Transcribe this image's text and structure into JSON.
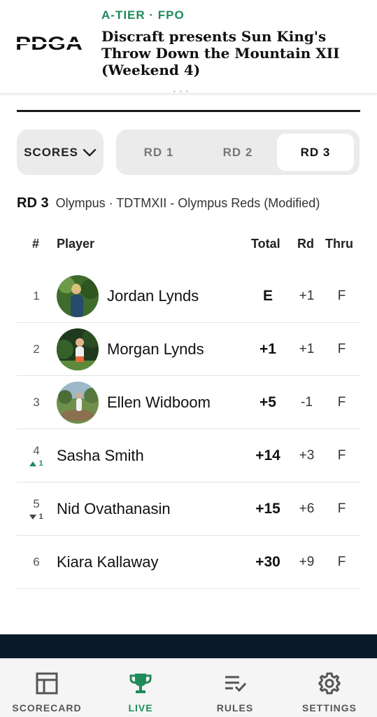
{
  "header": {
    "logo_text": "PDGA",
    "tier": "A-TIER · FPO",
    "title": "Discraft presents Sun King's Throw Down the Mountain XII (Weekend 4)"
  },
  "controls": {
    "scores_label": "SCORES",
    "rounds": [
      {
        "label": "RD 1",
        "active": false
      },
      {
        "label": "RD 2",
        "active": false
      },
      {
        "label": "RD 3",
        "active": true
      }
    ]
  },
  "round_info": {
    "round": "RD 3",
    "course": "Olympus · TDTMXII - Olympus Reds (Modified)"
  },
  "table": {
    "headers": {
      "pos": "#",
      "player": "Player",
      "total": "Total",
      "rd": "Rd",
      "thru": "Thru"
    },
    "rows": [
      {
        "pos": "1",
        "name": "Jordan Lynds",
        "total": "E",
        "rd": "+1",
        "thru": "F",
        "avatar": true,
        "move": null
      },
      {
        "pos": "2",
        "name": "Morgan Lynds",
        "total": "+1",
        "rd": "+1",
        "thru": "F",
        "avatar": true,
        "move": null
      },
      {
        "pos": "3",
        "name": "Ellen Widboom",
        "total": "+5",
        "rd": "-1",
        "thru": "F",
        "avatar": true,
        "move": null
      },
      {
        "pos": "4",
        "name": "Sasha Smith",
        "total": "+14",
        "rd": "+3",
        "thru": "F",
        "avatar": false,
        "move": {
          "dir": "up",
          "value": "1"
        }
      },
      {
        "pos": "5",
        "name": "Nid Ovathanasin",
        "total": "+15",
        "rd": "+6",
        "thru": "F",
        "avatar": false,
        "move": {
          "dir": "down",
          "value": "1"
        }
      },
      {
        "pos": "6",
        "name": "Kiara Kallaway",
        "total": "+30",
        "rd": "+9",
        "thru": "F",
        "avatar": false,
        "move": null
      }
    ]
  },
  "nav": {
    "items": [
      {
        "label": "SCORECARD",
        "icon": "scorecard-icon",
        "active": false
      },
      {
        "label": "LIVE",
        "icon": "trophy-icon",
        "active": true
      },
      {
        "label": "RULES",
        "icon": "rules-icon",
        "active": false
      },
      {
        "label": "SETTINGS",
        "icon": "gear-icon",
        "active": false
      }
    ]
  },
  "colors": {
    "accent": "#1f8a5a",
    "dark_band": "#0b1a2a"
  }
}
